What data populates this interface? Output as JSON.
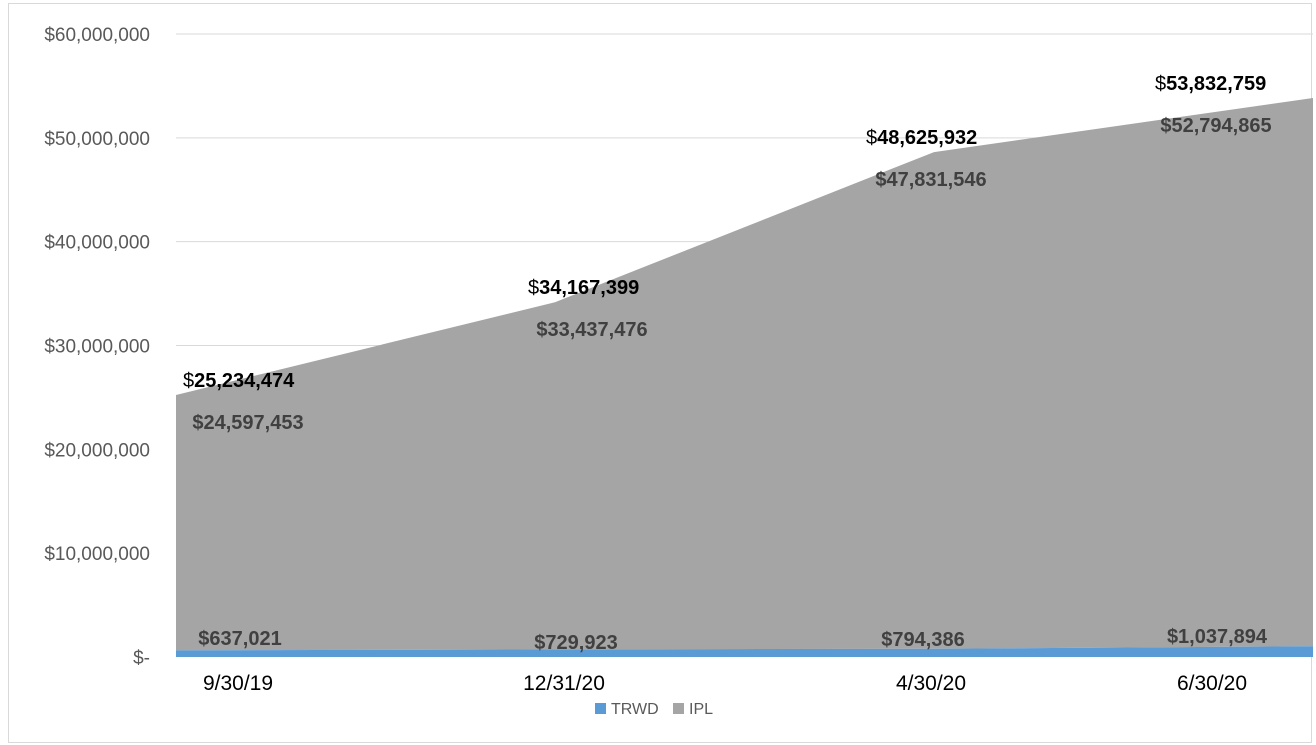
{
  "chart_data": {
    "type": "area",
    "categories": [
      "9/30/19",
      "12/31/20",
      "4/30/20",
      "6/30/20"
    ],
    "series": [
      {
        "name": "TRWD",
        "values": [
          637021,
          729923,
          794386,
          1037894
        ],
        "labels": [
          "$637,021",
          "$729,923",
          "$794,386",
          "$1,037,894"
        ],
        "color": "#5b9bd5"
      },
      {
        "name": "IPL",
        "values": [
          24597453,
          33437476,
          47831546,
          52794865
        ],
        "labels": [
          "$24,597,453",
          "$33,437,476",
          "$47,831,546",
          "$52,794,865"
        ],
        "color": "#a5a5a5"
      }
    ],
    "totals": {
      "values": [
        25234474,
        34167399,
        48625932,
        53832759
      ],
      "prefix": "$",
      "digits": [
        "25,234,474",
        "34,167,399",
        "48,625,932",
        "53,832,759"
      ]
    },
    "yticks": [
      "$-",
      "$10,000,000",
      "$20,000,000",
      "$30,000,000",
      "$40,000,000",
      "$50,000,000",
      "$60,000,000"
    ],
    "ylim": [
      0,
      60000000
    ],
    "grid": true,
    "legend": "bottom",
    "stacked": true
  }
}
